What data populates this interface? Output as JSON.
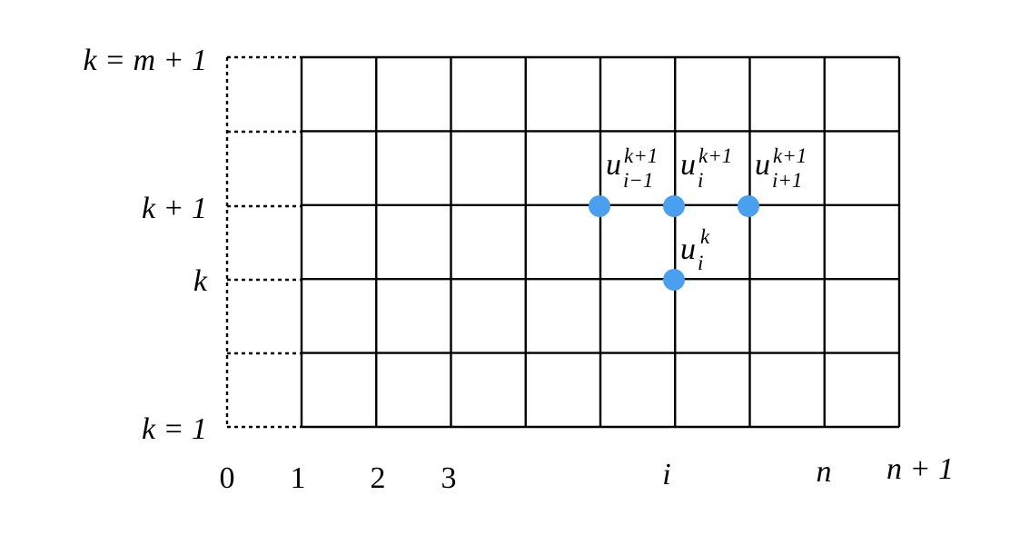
{
  "grid": {
    "columns": 8,
    "rows": 5
  },
  "colors": {
    "node": "#4a9fef",
    "lines": "#000000"
  },
  "row_labels": {
    "top": "k = m + 1",
    "k_plus_1": "k + 1",
    "k": "k",
    "bottom": "k = 1"
  },
  "column_labels": {
    "c0": "0",
    "c1": "1",
    "c2": "2",
    "c3": "3",
    "ci": "i",
    "cn": "n",
    "cn1": "n + 1"
  },
  "nodes": [
    {
      "id": "u-im1-kp1",
      "base": "u",
      "sup": "k+1",
      "sub": "i−1"
    },
    {
      "id": "u-i-kp1",
      "base": "u",
      "sup": "k+1",
      "sub": "i"
    },
    {
      "id": "u-ip1-kp1",
      "base": "u",
      "sup": "k+1",
      "sub": "i+1"
    },
    {
      "id": "u-i-k",
      "base": "u",
      "sup": "k",
      "sub": "i"
    }
  ]
}
